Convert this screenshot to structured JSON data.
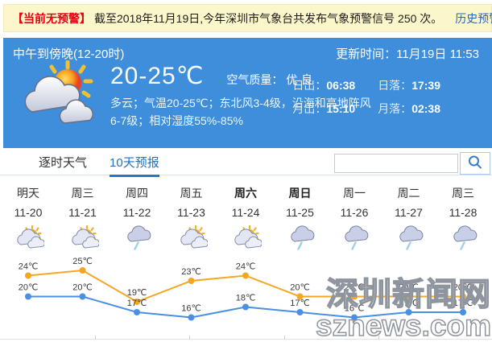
{
  "notice": {
    "badge": "【当前无预警】",
    "text": "截至2018年11月19日,今年深圳市气象台共发布气象预警信号 250 次。",
    "link": "历史预警查询"
  },
  "widget": {
    "period": "中午到傍晚(12-20时)",
    "updated": "更新时间：11月19日 11:53",
    "temp_range": "20-25℃",
    "air_quality_label": "空气质量：",
    "air_quality_value": "优-良",
    "desc_line1": "多云；气温20-25℃；东北风3-4级，沿海和高地阵风",
    "desc_line2": "6-7级；相对湿度55%-85%",
    "icon": "cloudy-sun-icon",
    "sun_moon": [
      {
        "label": "日出：",
        "value": "06:38"
      },
      {
        "label": "日落：",
        "value": "17:39"
      },
      {
        "label": "月出：",
        "value": "15:10"
      },
      {
        "label": "月落：",
        "value": "02:38"
      }
    ]
  },
  "tabs": [
    {
      "label": "逐时天气",
      "active": false
    },
    {
      "label": "10天预报",
      "active": true
    }
  ],
  "search": {
    "value": "",
    "icon": "magnifier-icon"
  },
  "chart_data": {
    "type": "line",
    "categories": [
      "明天",
      "周三",
      "周四",
      "周五",
      "周六",
      "周日",
      "周一",
      "周二",
      "周三"
    ],
    "dates": [
      "11-20",
      "11-21",
      "11-22",
      "11-23",
      "11-24",
      "11-25",
      "11-26",
      "11-27",
      "11-28"
    ],
    "weekend_bold": [
      false,
      false,
      false,
      false,
      true,
      true,
      false,
      false,
      false
    ],
    "icons": [
      "cloudy-sun",
      "cloudy-sun",
      "rain",
      "cloudy-sun",
      "cloudy-sun",
      "rain",
      "rain",
      "rain",
      "rain"
    ],
    "unit": "℃",
    "series": [
      {
        "name": "high",
        "color": "#f5a623",
        "values": [
          24,
          25,
          19,
          23,
          24,
          20,
          20,
          20,
          20
        ]
      },
      {
        "name": "low",
        "color": "#4a90e2",
        "values": [
          20,
          20,
          17,
          16,
          18,
          17,
          16,
          17,
          17
        ]
      }
    ],
    "ylim": [
      14,
      27
    ],
    "grid": false,
    "legend": "none"
  },
  "watermark": {
    "line1": "深圳新闻网",
    "line2": "sznews.com"
  },
  "colors": {
    "notice_bg": "#fcf7cb",
    "notice_badge": "#e60012",
    "link_blue": "#2d64b3",
    "widget_bg": "#3e8edb",
    "tab_active": "#1f74c0",
    "high_line": "#f5a623",
    "low_line": "#4a90e2"
  }
}
